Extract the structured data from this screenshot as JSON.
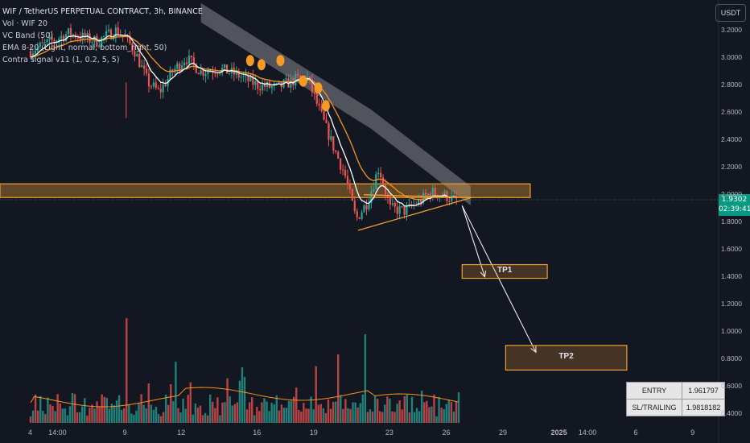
{
  "header": {
    "symbol_line": "WIF / TetherUS PERPETUAL CONTRACT, 3h, BINANCE",
    "indicators": [
      "Vol · WIF 20",
      "VC Band (50)",
      "EMA 8-20 (Light, normal, bottom_right, 50)",
      "Contra signal v11 (1, 0.2, 5, 5)"
    ]
  },
  "currency_button": "USDT",
  "colors": {
    "background": "#131722",
    "up": "#26a69a",
    "down": "#ef5350",
    "ema_fast": "#ffffff",
    "ema_slow": "#f7931a",
    "band": "#5d5f66",
    "zone": "#f0a030",
    "price_tag": "#089981"
  },
  "current_price": {
    "value": "1.9302",
    "countdown": "02:39:41"
  },
  "trade_table": [
    {
      "key": "ENTRY",
      "value": "1.961797"
    },
    {
      "key": "SL/TRAILING",
      "value": "1.9818182"
    }
  ],
  "chart_data": {
    "type": "candlestick",
    "y_axis": {
      "min": 0.35,
      "max": 3.3,
      "ticks": [
        "3.2000",
        "3.0000",
        "2.8000",
        "2.6000",
        "2.4000",
        "2.2000",
        "2.0000",
        "1.8000",
        "1.6000",
        "1.4000",
        "1.2000",
        "1.0000",
        "0.8000",
        "0.6000",
        "0.4000"
      ]
    },
    "x_axis": {
      "start_day": 4,
      "end_day": 10,
      "ticks": [
        {
          "label": "4",
          "t": 4.0
        },
        {
          "label": "14:00",
          "t": 5.58
        },
        {
          "label": "9",
          "t": 9.0
        },
        {
          "label": "12",
          "t": 12.0
        },
        {
          "label": "16",
          "t": 16.0
        },
        {
          "label": "19",
          "t": 19.0
        },
        {
          "label": "23",
          "t": 23.0
        },
        {
          "label": "26",
          "t": 26.0
        },
        {
          "label": "29",
          "t": 29.0
        },
        {
          "label": "2025",
          "t": 32.0
        },
        {
          "label": "14:00",
          "t": 33.58
        },
        {
          "label": "6",
          "t": 36.0
        },
        {
          "label": "9",
          "t": 39.0
        }
      ]
    },
    "price_path": [
      {
        "t": 4.0,
        "p": 3.05
      },
      {
        "t": 6.0,
        "p": 3.18
      },
      {
        "t": 7.5,
        "p": 3.12
      },
      {
        "t": 8.5,
        "p": 3.2
      },
      {
        "t": 9.0,
        "p": 3.15
      },
      {
        "t": 9.5,
        "p": 3.05
      },
      {
        "t": 10.2,
        "p": 2.82
      },
      {
        "t": 10.8,
        "p": 2.75
      },
      {
        "t": 11.5,
        "p": 2.9
      },
      {
        "t": 12.2,
        "p": 3.0
      },
      {
        "t": 13.0,
        "p": 2.9
      },
      {
        "t": 14.0,
        "p": 2.92
      },
      {
        "t": 15.0,
        "p": 2.87
      },
      {
        "t": 16.0,
        "p": 2.8
      },
      {
        "t": 17.0,
        "p": 2.78
      },
      {
        "t": 18.0,
        "p": 2.84
      },
      {
        "t": 18.6,
        "p": 2.86
      },
      {
        "t": 19.3,
        "p": 2.6
      },
      {
        "t": 20.0,
        "p": 2.35
      },
      {
        "t": 20.6,
        "p": 2.15
      },
      {
        "t": 21.2,
        "p": 1.82
      },
      {
        "t": 21.8,
        "p": 1.95
      },
      {
        "t": 22.4,
        "p": 2.2
      },
      {
        "t": 23.0,
        "p": 1.9
      },
      {
        "t": 23.8,
        "p": 1.88
      },
      {
        "t": 24.6,
        "p": 1.96
      },
      {
        "t": 25.2,
        "p": 2.02
      },
      {
        "t": 25.8,
        "p": 2.0
      },
      {
        "t": 26.4,
        "p": 1.96
      }
    ],
    "ema_fast_note": "white line follows close price",
    "signals": [
      {
        "t": 15.6,
        "p": 2.98
      },
      {
        "t": 16.2,
        "p": 2.95
      },
      {
        "t": 17.2,
        "p": 2.98
      },
      {
        "t": 18.4,
        "p": 2.83
      },
      {
        "t": 19.2,
        "p": 2.78
      },
      {
        "t": 19.6,
        "p": 2.65
      }
    ],
    "support_zone": {
      "low": 1.98,
      "high": 2.08,
      "t_end": 30.4
    },
    "triangle": {
      "apex_t": 27.3,
      "apex_p": 1.98,
      "low_t": 21.3,
      "low_p": 1.74,
      "upper_t": 21.6,
      "upper_p": 2.0
    },
    "projection": {
      "from_t": 26.8,
      "from_p": 1.92,
      "tp1_t": 28.0,
      "tp1_p": 1.4,
      "tp2_t": 30.7,
      "tp2_p": 0.85
    },
    "targets": [
      {
        "label": "TP1",
        "t_start": 26.8,
        "t_end": 31.3,
        "p_low": 1.39,
        "p_high": 1.49
      },
      {
        "label": "TP2",
        "t_start": 29.1,
        "t_end": 35.5,
        "p_low": 0.72,
        "p_high": 0.9
      }
    ],
    "volume": {
      "bars": 175,
      "max_height_p": 1.08
    }
  }
}
